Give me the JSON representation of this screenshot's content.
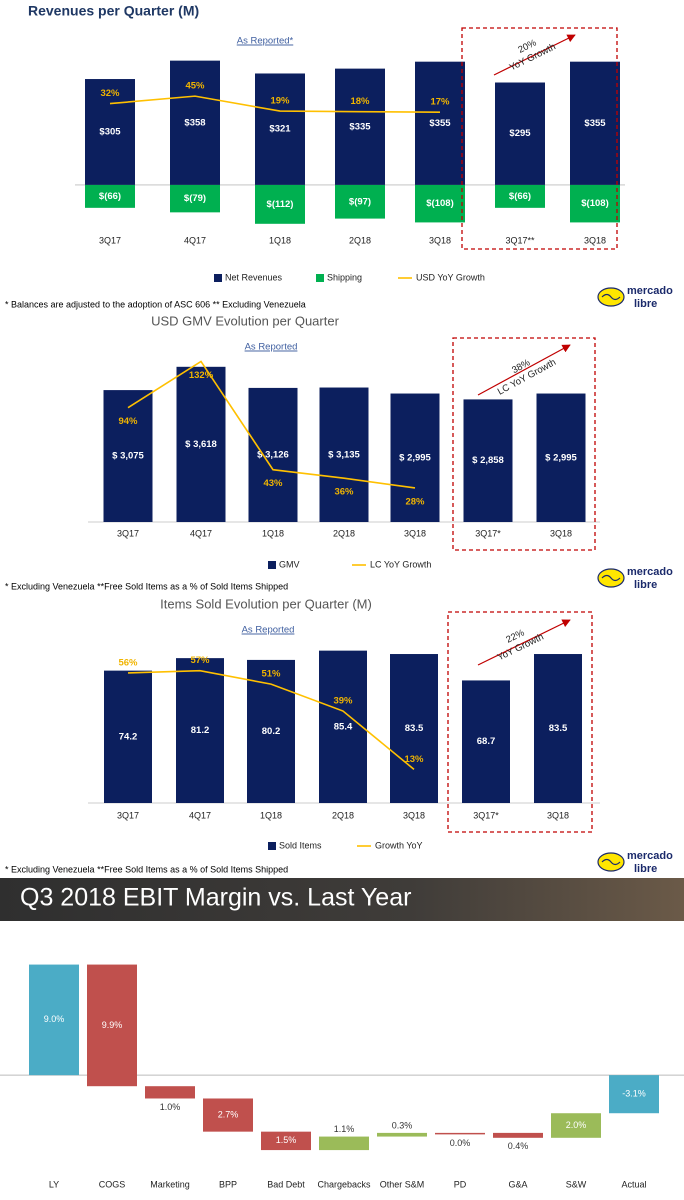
{
  "logo": [
    "mercado",
    "libre"
  ],
  "chart_data": [
    {
      "type": "bar",
      "title": "Revenues per Quarter (M)",
      "subtitle": "As Reported*",
      "categories": [
        "3Q17",
        "4Q17",
        "1Q18",
        "2Q18",
        "3Q18",
        "3Q17**",
        "3Q18"
      ],
      "series": [
        {
          "name": "Net Revenues",
          "color": "#0c1f5e",
          "values": [
            305,
            358,
            321,
            335,
            355,
            295,
            355
          ],
          "value_labels": [
            "$305",
            "$358",
            "$321",
            "$335",
            "$355",
            "$295",
            "$355"
          ]
        },
        {
          "name": "Shipping",
          "color": "#00b050",
          "values": [
            -66,
            -79,
            -112,
            -97,
            -108,
            -66,
            -108
          ],
          "value_labels": [
            "$(66)",
            "$(79)",
            "$(112)",
            "$(97)",
            "$(108)",
            "$(66)",
            "$(108)"
          ]
        },
        {
          "name": "USD YoY Growth",
          "type": "line",
          "axis": "y2",
          "color": "#ffc000",
          "values": [
            32,
            45,
            19,
            18,
            17,
            null,
            null
          ],
          "value_labels": [
            "32%",
            "45%",
            "19%",
            "18%",
            "17%",
            null,
            null
          ]
        }
      ],
      "ylim": [
        -150,
        380
      ],
      "y2lim": [
        -200,
        120
      ],
      "annotations": [
        "20%",
        "YoY Growth"
      ],
      "footnote": "* Balances are adjusted to the adoption of ASC 606 ** Excluding Venezuela"
    },
    {
      "type": "bar",
      "title": "USD GMV  Evolution per Quarter",
      "subtitle": "As Reported",
      "categories": [
        "3Q17",
        "4Q17",
        "1Q18",
        "2Q18",
        "3Q18",
        "3Q17*",
        "3Q18"
      ],
      "series": [
        {
          "name": "GMV",
          "color": "#0c1f5e",
          "values": [
            3075,
            3618,
            3126,
            3135,
            2995,
            2858,
            2995
          ],
          "value_labels": [
            "$ 3,075",
            "$ 3,618",
            "$ 3,126",
            "$ 3,135",
            "$ 2,995",
            "$ 2,858",
            "$ 2,995"
          ]
        },
        {
          "name": "LC YoY Growth",
          "type": "line",
          "axis": "y2",
          "color": "#ffc000",
          "values": [
            94,
            132,
            43,
            36,
            28,
            null,
            null
          ],
          "value_labels": [
            "94%",
            "132%",
            "43%",
            "36%",
            "28%",
            null,
            null
          ]
        }
      ],
      "ylim": [
        0,
        3800
      ],
      "y2lim": [
        0,
        134
      ],
      "annotations": [
        "38%",
        "LC YoY Growth"
      ],
      "footnote": "* Excluding Venezuela **Free Sold Items as a % of Sold Items Shipped"
    },
    {
      "type": "bar",
      "title": "Items Sold Evolution per Quarter (M)",
      "subtitle": "As Reported",
      "categories": [
        "3Q17",
        "4Q17",
        "1Q18",
        "2Q18",
        "3Q18",
        "3Q17*",
        "3Q18"
      ],
      "series": [
        {
          "name": "Sold Items",
          "color": "#0c1f5e",
          "values": [
            74.2,
            81.2,
            80.2,
            85.4,
            83.5,
            68.7,
            83.5
          ]
        },
        {
          "name": "Growth YoY",
          "type": "line",
          "axis": "y2",
          "color": "#ffc000",
          "values": [
            56,
            57,
            51,
            39,
            13,
            null,
            null
          ],
          "value_labels": [
            "56%",
            "57%",
            "51%",
            "39%",
            "13%",
            null,
            null
          ]
        }
      ],
      "ylim": [
        0,
        88
      ],
      "y2lim": [
        -2,
        68
      ],
      "annotations": [
        "22%",
        "YoY Growth"
      ],
      "footnote": "* Excluding Venezuela **Free Sold Items as a % of Sold Items Shipped"
    },
    {
      "type": "waterfall",
      "title": "Q3 2018 EBIT Margin vs. Last Year",
      "categories": [
        "LY",
        "COGS",
        "Marketing",
        "BPP",
        "Bad Debt",
        "Chargebacks",
        "Other S&M",
        "PD",
        "G&A",
        "S&W",
        "Actual"
      ],
      "values": [
        9.0,
        -9.9,
        -1.0,
        -2.7,
        -1.5,
        1.1,
        0.3,
        0.0,
        -0.4,
        2.0,
        -3.1
      ],
      "value_labels": [
        "9.0%",
        "9.9%",
        "1.0%",
        "2.7%",
        "1.5%",
        "1.1%",
        "0.3%",
        "0.0%",
        "0.4%",
        "2.0%",
        "-3.1%"
      ],
      "measure": [
        "absolute",
        "relative",
        "relative",
        "relative",
        "relative",
        "relative",
        "relative",
        "relative",
        "relative",
        "relative",
        "absolute"
      ],
      "colors": [
        "#4bacc6",
        "#c0504d",
        "#c0504d",
        "#c0504d",
        "#c0504d",
        "#9bbb59",
        "#9bbb59",
        "#c0504d",
        "#c0504d",
        "#9bbb59",
        "#4bacc6"
      ],
      "ylim": [
        -6.5,
        11
      ]
    }
  ]
}
